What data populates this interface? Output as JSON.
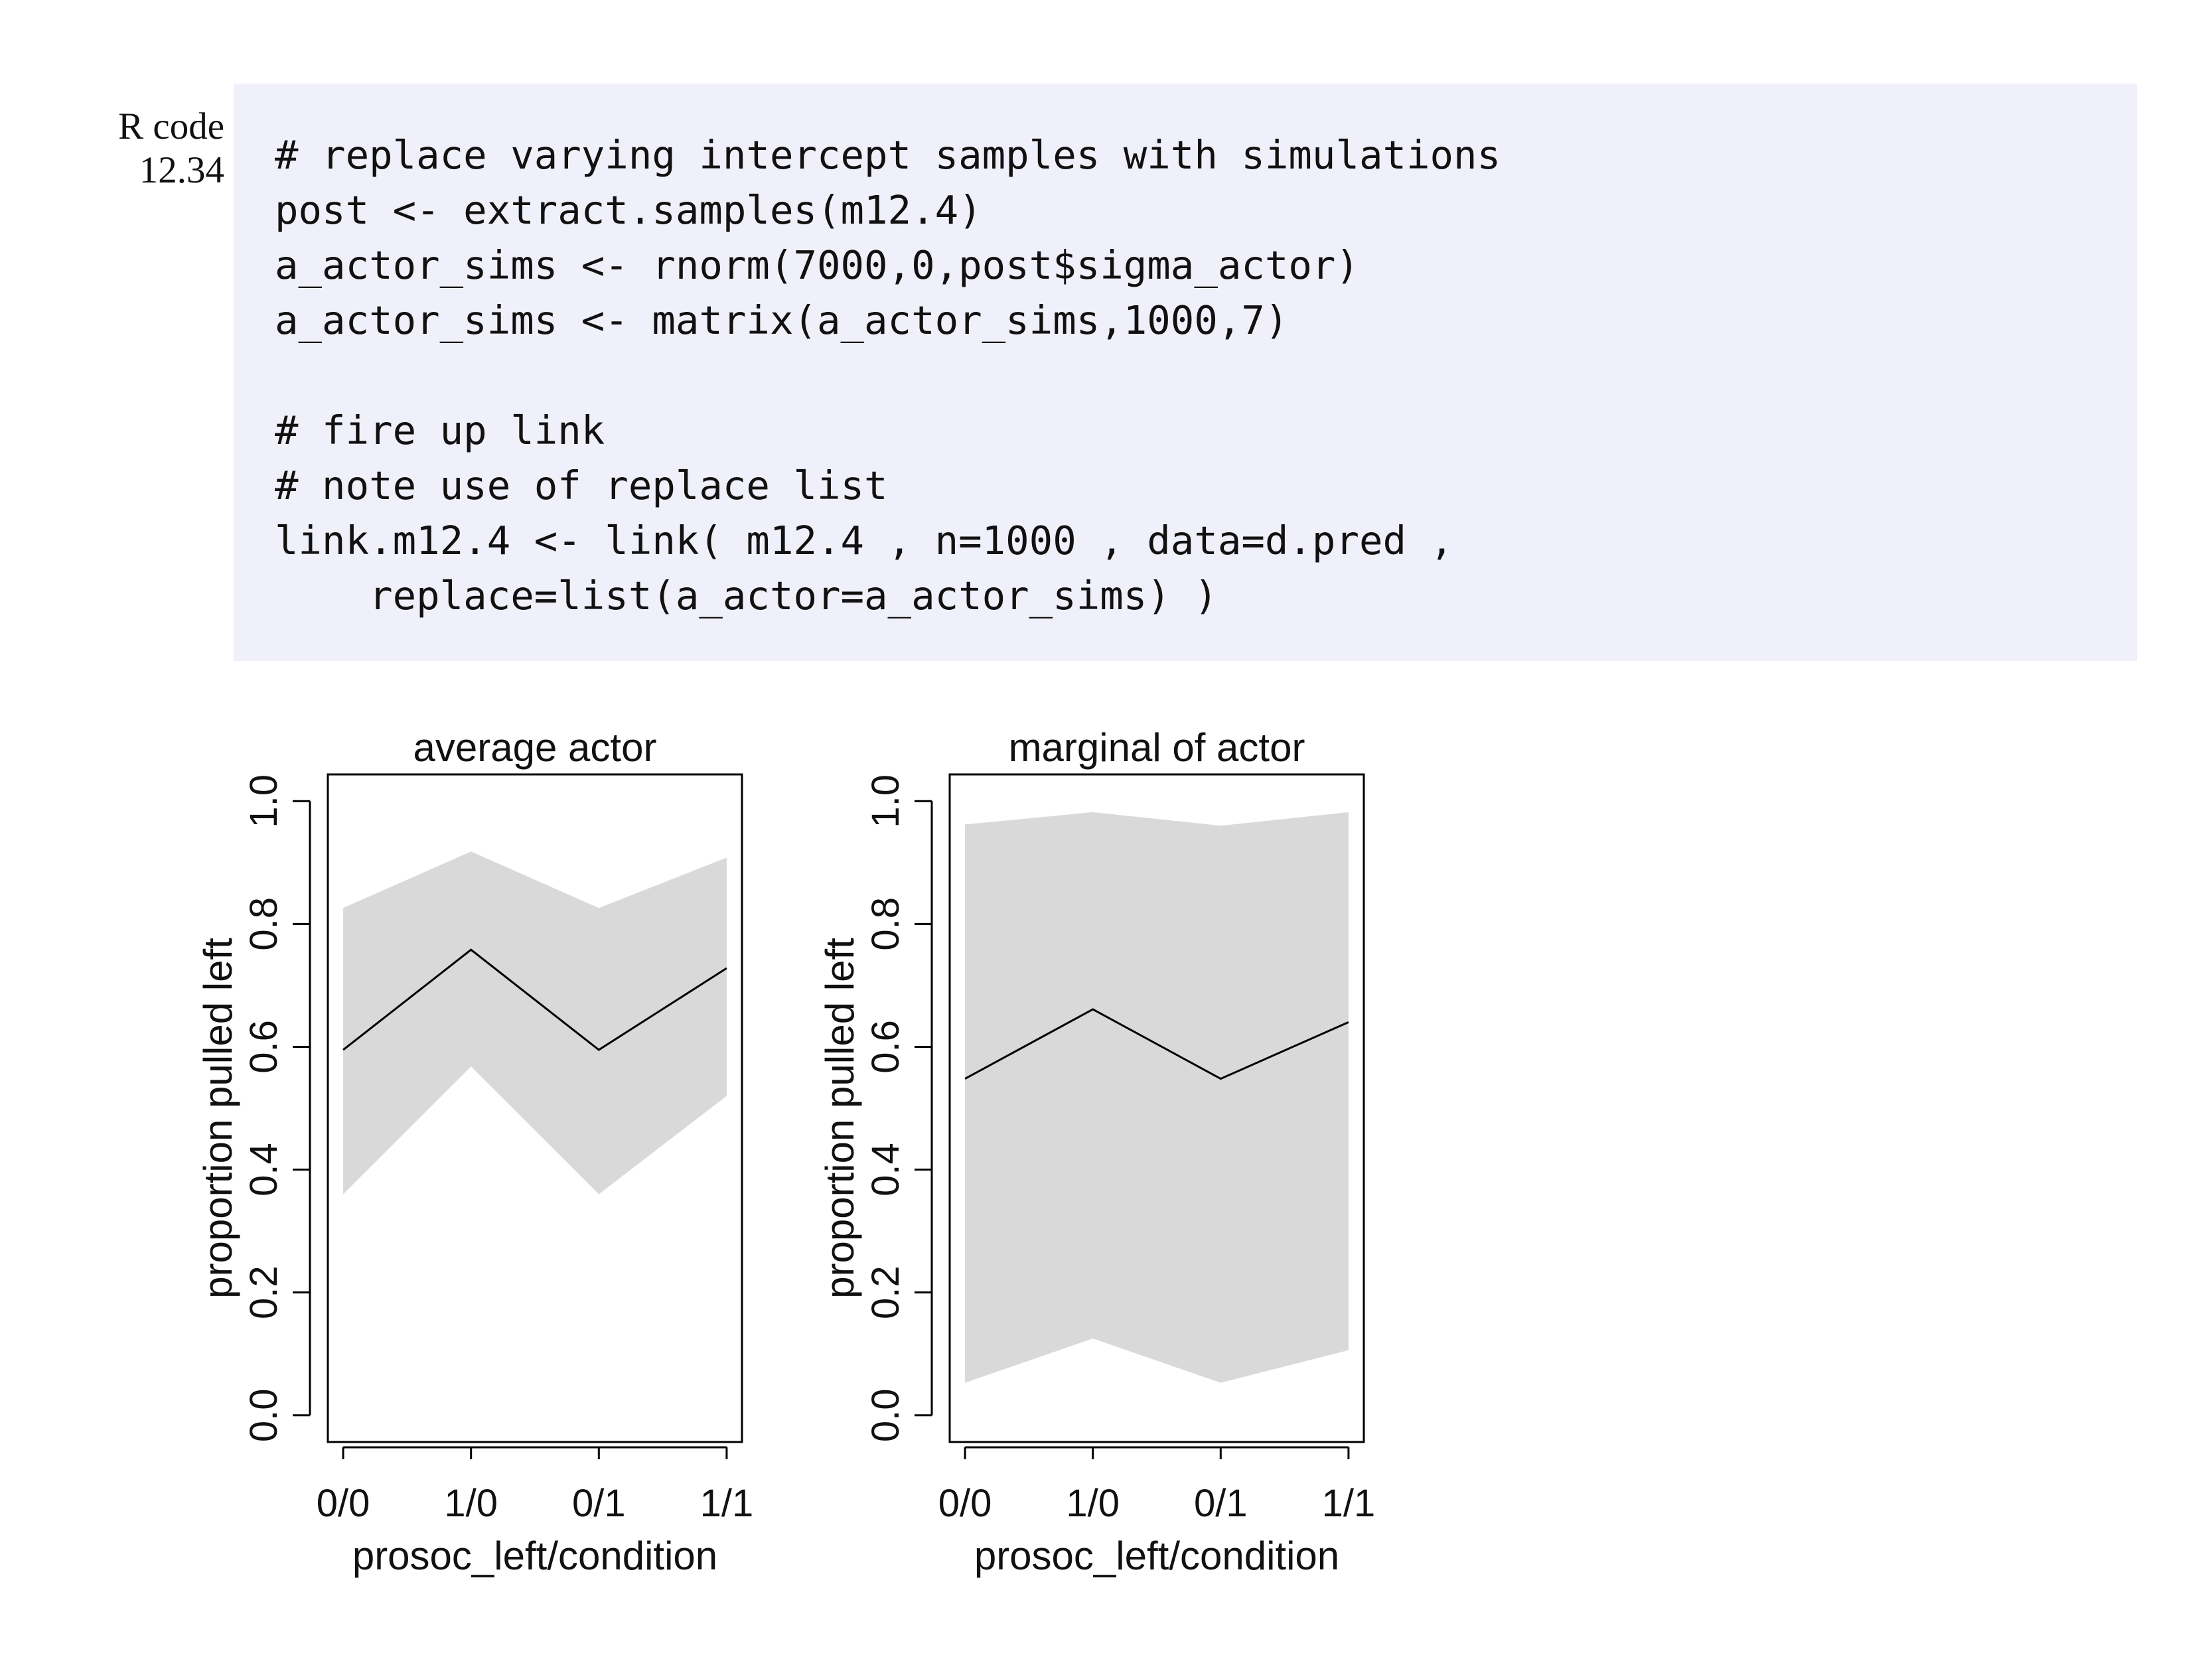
{
  "code_label": {
    "line1": "R code",
    "line2": "12.34"
  },
  "code_lines": [
    "# replace varying intercept samples with simulations",
    "post <- extract.samples(m12.4)",
    "a_actor_sims <- rnorm(7000,0,post$sigma_actor)",
    "a_actor_sims <- matrix(a_actor_sims,1000,7)",
    "",
    "# fire up link",
    "# note use of replace list",
    "link.m12.4 <- link( m12.4 , n=1000 , data=d.pred ,",
    "    replace=list(a_actor=a_actor_sims) )"
  ],
  "chart_data": [
    {
      "type": "line",
      "title": "average actor",
      "xlabel": "prosoc_left/condition",
      "ylabel": "proportion pulled left",
      "categories": [
        "0/0",
        "1/0",
        "0/1",
        "1/1"
      ],
      "ylim": [
        0.0,
        1.0
      ],
      "yticks": [
        "0.0",
        "0.2",
        "0.4",
        "0.6",
        "0.8",
        "1.0"
      ],
      "series": [
        {
          "values": [
            0.595,
            0.758,
            0.595,
            0.728
          ]
        }
      ],
      "interval": {
        "lower": [
          0.36,
          0.568,
          0.36,
          0.52
        ],
        "upper": [
          0.826,
          0.918,
          0.826,
          0.908
        ]
      },
      "band_color": "#d9d9d9",
      "line_color": "#000000",
      "grid": false
    },
    {
      "type": "line",
      "title": "marginal of actor",
      "xlabel": "prosoc_left/condition",
      "ylabel": "proportion pulled left",
      "categories": [
        "0/0",
        "1/0",
        "0/1",
        "1/1"
      ],
      "ylim": [
        0.0,
        1.0
      ],
      "yticks": [
        "0.0",
        "0.2",
        "0.4",
        "0.6",
        "0.8",
        "1.0"
      ],
      "series": [
        {
          "values": [
            0.548,
            0.661,
            0.548,
            0.64
          ]
        }
      ],
      "interval": {
        "lower": [
          0.053,
          0.125,
          0.053,
          0.106
        ],
        "upper": [
          0.962,
          0.982,
          0.96,
          0.982
        ]
      },
      "band_color": "#d9d9d9",
      "line_color": "#000000",
      "grid": false
    }
  ]
}
